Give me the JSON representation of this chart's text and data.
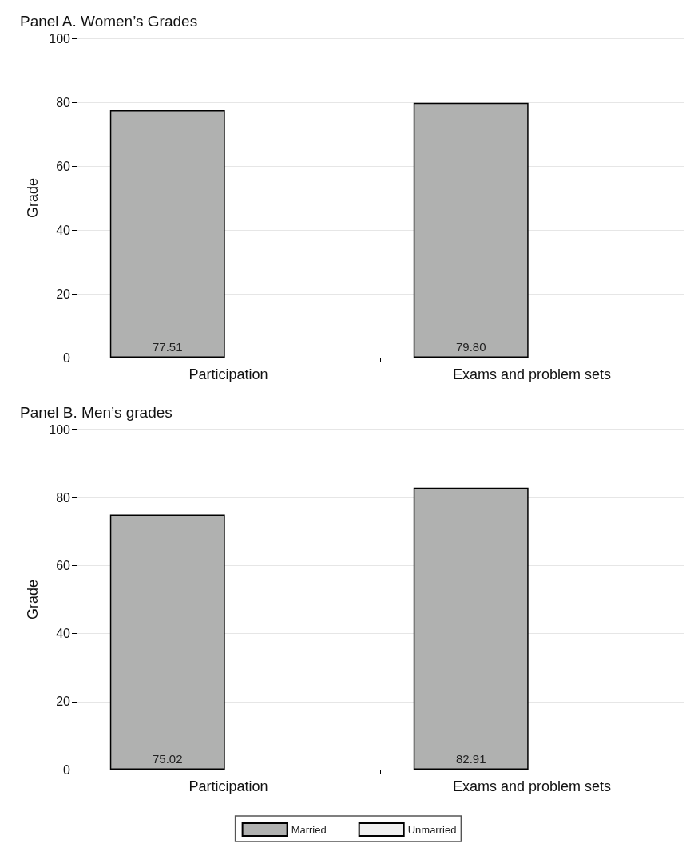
{
  "chart_data": [
    {
      "type": "bar",
      "title": "Panel A. Women’s Grades",
      "ylabel": "Grade",
      "categories": [
        "Participation",
        "Exams and problem sets"
      ],
      "series": [
        {
          "color": "#b0b1b0",
          "values": [
            77.51,
            79.8
          ],
          "value_labels": [
            "77.51",
            "79.80"
          ]
        },
        {
          "color": "#f0f0f0",
          "values": [
            null,
            null
          ]
        }
      ],
      "ylim": [
        0,
        100
      ],
      "yticks": [
        0,
        20,
        40,
        60,
        80,
        100
      ],
      "grid": "y",
      "legend": false
    },
    {
      "type": "bar",
      "title": "Panel B. Men’s grades",
      "ylabel": "Grade",
      "categories": [
        "Participation",
        "Exams and problem sets"
      ],
      "series": [
        {
          "name": "Married",
          "color": "#b0b1b0",
          "values": [
            75.02,
            82.91
          ],
          "value_labels": [
            "75.02",
            "82.91"
          ]
        },
        {
          "name": "Unmarried",
          "color": "#f0f0f0",
          "values": [
            null,
            null
          ]
        }
      ],
      "ylim": [
        0,
        100
      ],
      "yticks": [
        0,
        20,
        40,
        60,
        80,
        100
      ],
      "grid": "y",
      "legend": "bottom"
    }
  ]
}
